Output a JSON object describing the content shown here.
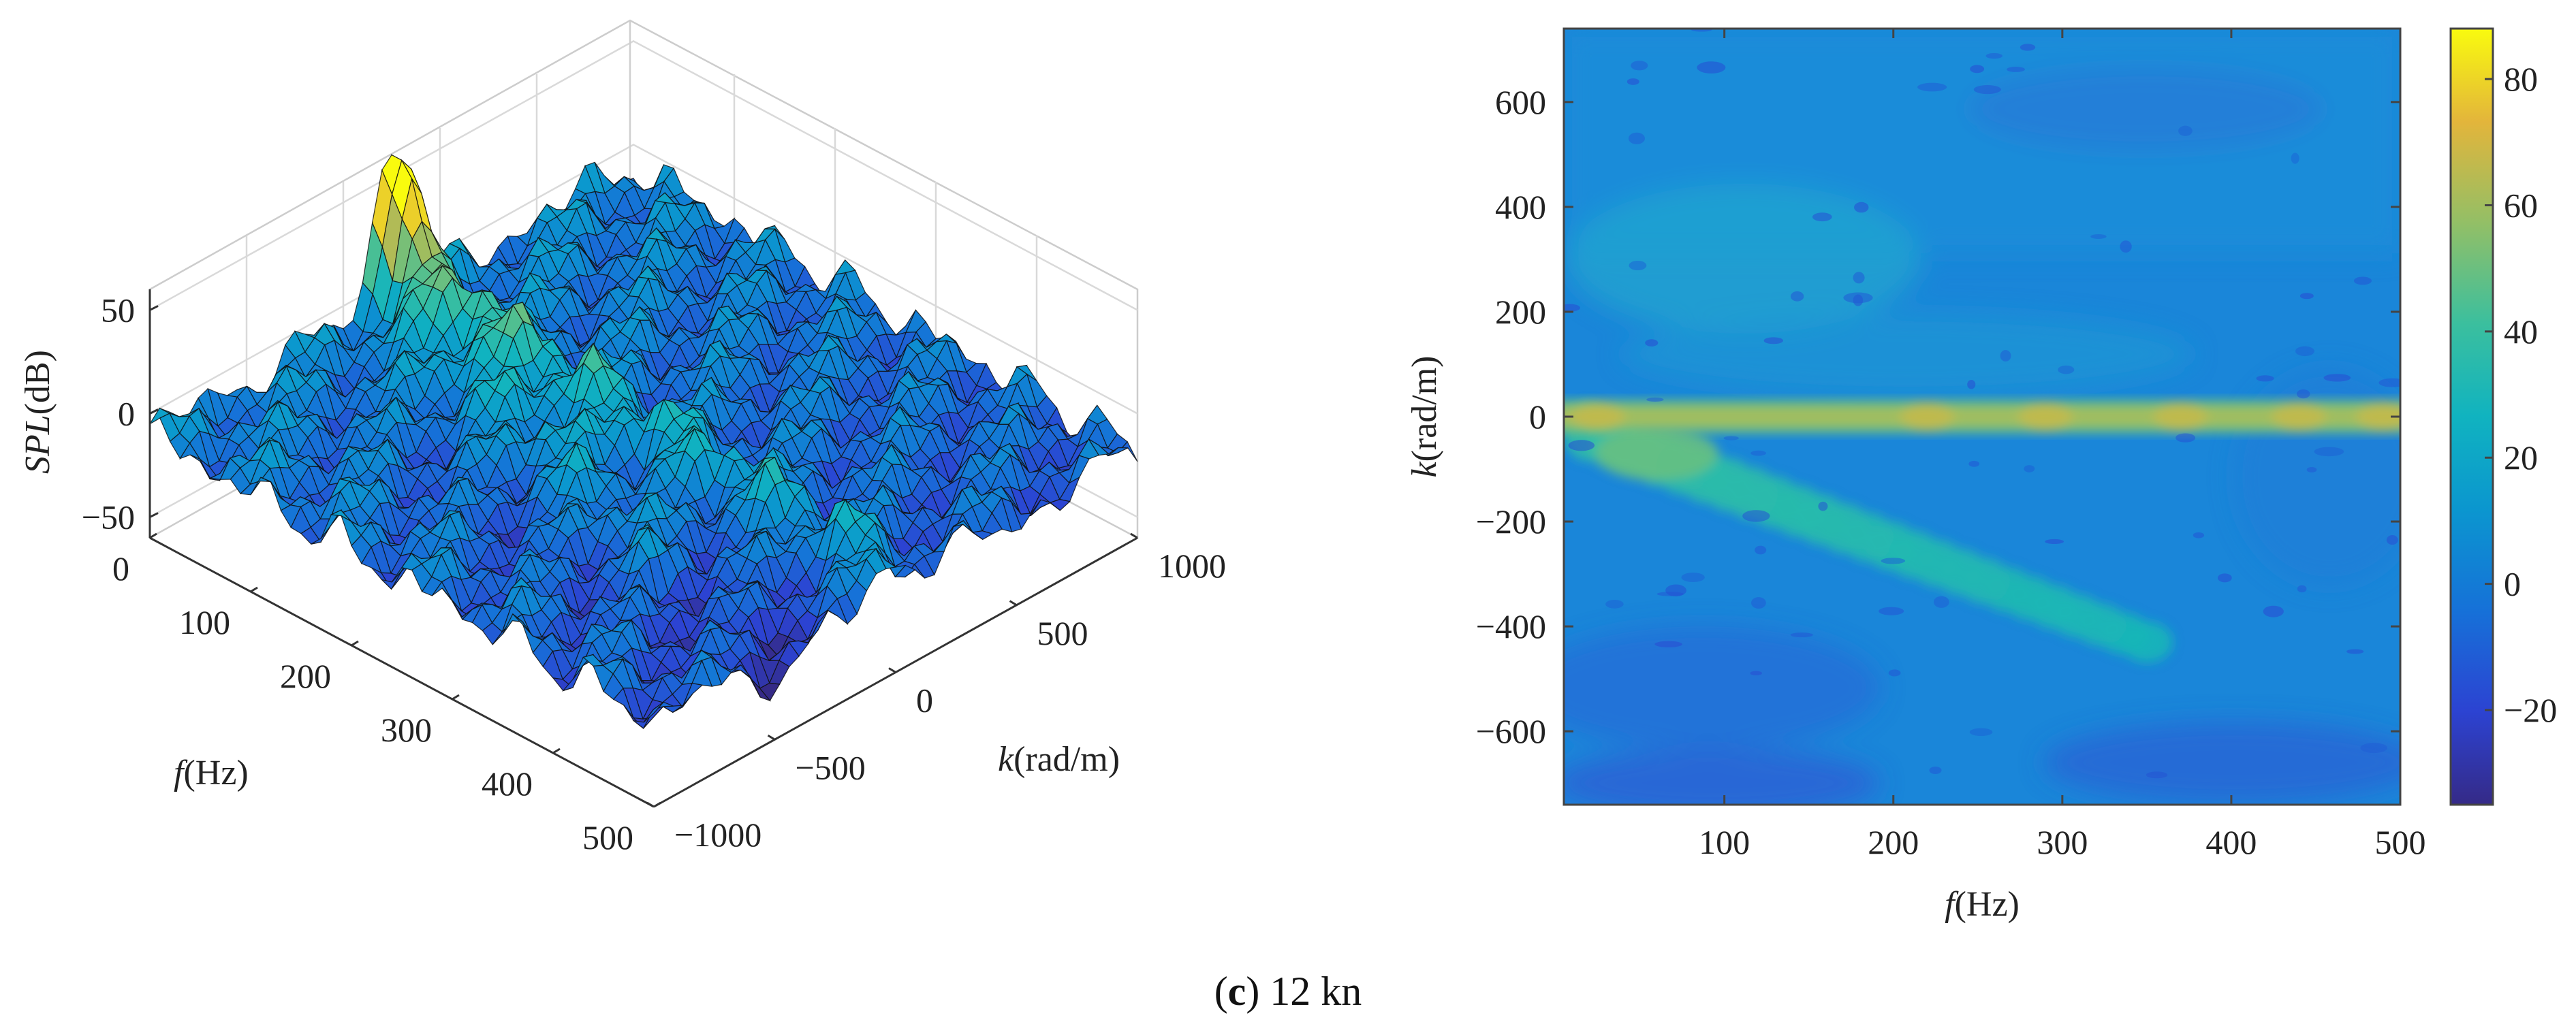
{
  "chart_data": [
    {
      "type": "surface",
      "panel": "left-3d",
      "x_axis": {
        "var": "f",
        "unit": "(Hz)",
        "ticks": [
          "0",
          "100",
          "200",
          "300",
          "400",
          "500"
        ],
        "range": [
          0,
          500
        ]
      },
      "y_axis": {
        "var": "k",
        "unit": "(rad/m)",
        "ticks": [
          "−1000",
          "−500",
          "0",
          "500",
          "1000"
        ],
        "range": [
          -1000,
          1000
        ]
      },
      "z_axis": {
        "var": "SPL",
        "unit": "(dB)",
        "ticks": [
          "−50",
          "0",
          "50"
        ],
        "range": [
          -60,
          60
        ]
      },
      "features": {
        "ridge_k0_level_db": 15,
        "peak_near_f0_db": 55,
        "background_db": -10
      }
    },
    {
      "type": "heatmap",
      "panel": "right-contour",
      "x_axis": {
        "var": "f",
        "unit": "(Hz)",
        "ticks": [
          "100",
          "200",
          "300",
          "400",
          "500"
        ],
        "range": [
          5,
          500
        ]
      },
      "y_axis": {
        "var": "k",
        "unit": "(rad/m)",
        "ticks": [
          "600",
          "400",
          "200",
          "0",
          "−200",
          "−400",
          "−600"
        ],
        "range": [
          -740,
          740
        ]
      },
      "colorbar": {
        "ticks": [
          "80",
          "60",
          "40",
          "20",
          "0",
          "−20"
        ],
        "range": [
          -35,
          88
        ]
      },
      "features": {
        "horizontal_band_k": 0,
        "horizontal_band_db": 60,
        "diagonal_band_start": [
          20,
          -30
        ],
        "diagonal_band_end": [
          350,
          -430
        ],
        "diagonal_band_db": 38,
        "background_db": 10
      }
    }
  ],
  "caption": {
    "letter": "c",
    "open": "(",
    "close": ")",
    "text": " 12 kn"
  }
}
